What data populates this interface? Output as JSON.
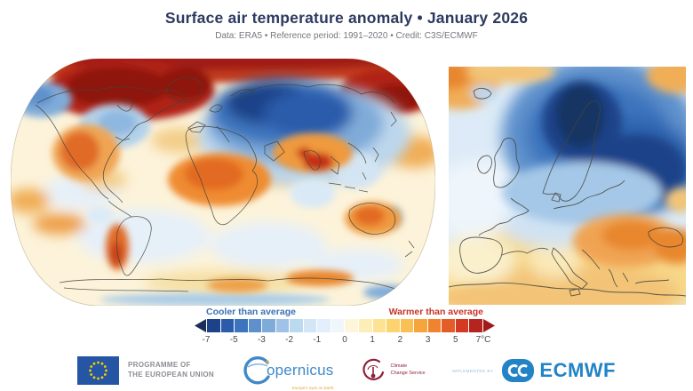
{
  "header": {
    "title": "Surface air temperature anomaly • January 2026",
    "subtitle": "Data: ERA5 • Reference period: 1991–2020 • Credit: C3S/ECMWF",
    "title_color": "#2d3a5f",
    "subtitle_color": "#75787e"
  },
  "legend": {
    "cool_label": "Cooler than average",
    "warm_label": "Warmer than average",
    "cool_label_color": "#3d70b6",
    "warm_label_color": "#c43528",
    "left_arrow_color": "#1a2f57",
    "right_arrow_color": "#9e1b1a",
    "block_colors": [
      "#1d4289",
      "#2a5cab",
      "#3e74bd",
      "#5e91cc",
      "#7fabd9",
      "#9fc3e6",
      "#badaf0",
      "#d2e6f6",
      "#e3effa",
      "#f0f7fc",
      "#fdf6da",
      "#fdedb6",
      "#fce293",
      "#fbd470",
      "#f9c153",
      "#f5a53c",
      "#ef832f",
      "#e55d26",
      "#d43a22",
      "#b5241f"
    ],
    "ticks": [
      "-7",
      "-5",
      "-3",
      "-2",
      "-1",
      "0",
      "1",
      "2",
      "3",
      "5",
      "7°C"
    ],
    "unit": "°C"
  },
  "footer": {
    "eu_programme_line1": "PROGRAMME OF",
    "eu_programme_line2": "THE EUROPEAN UNION",
    "eu_flag_blue": "#2456a4",
    "eu_star_yellow": "#ffcc00",
    "copernicus_text": "opernicus",
    "copernicus_tagline": "Europe's eyes on Earth",
    "copernicus_blue": "#4089c9",
    "c3s_line1": "Climate",
    "c3s_line2": "Change Service",
    "c3s_maroon": "#8e2038",
    "implemented_by": "IMPLEMENTED BY",
    "ecmwf": "ECMWF",
    "ecmwf_blue": "#2283c6"
  }
}
